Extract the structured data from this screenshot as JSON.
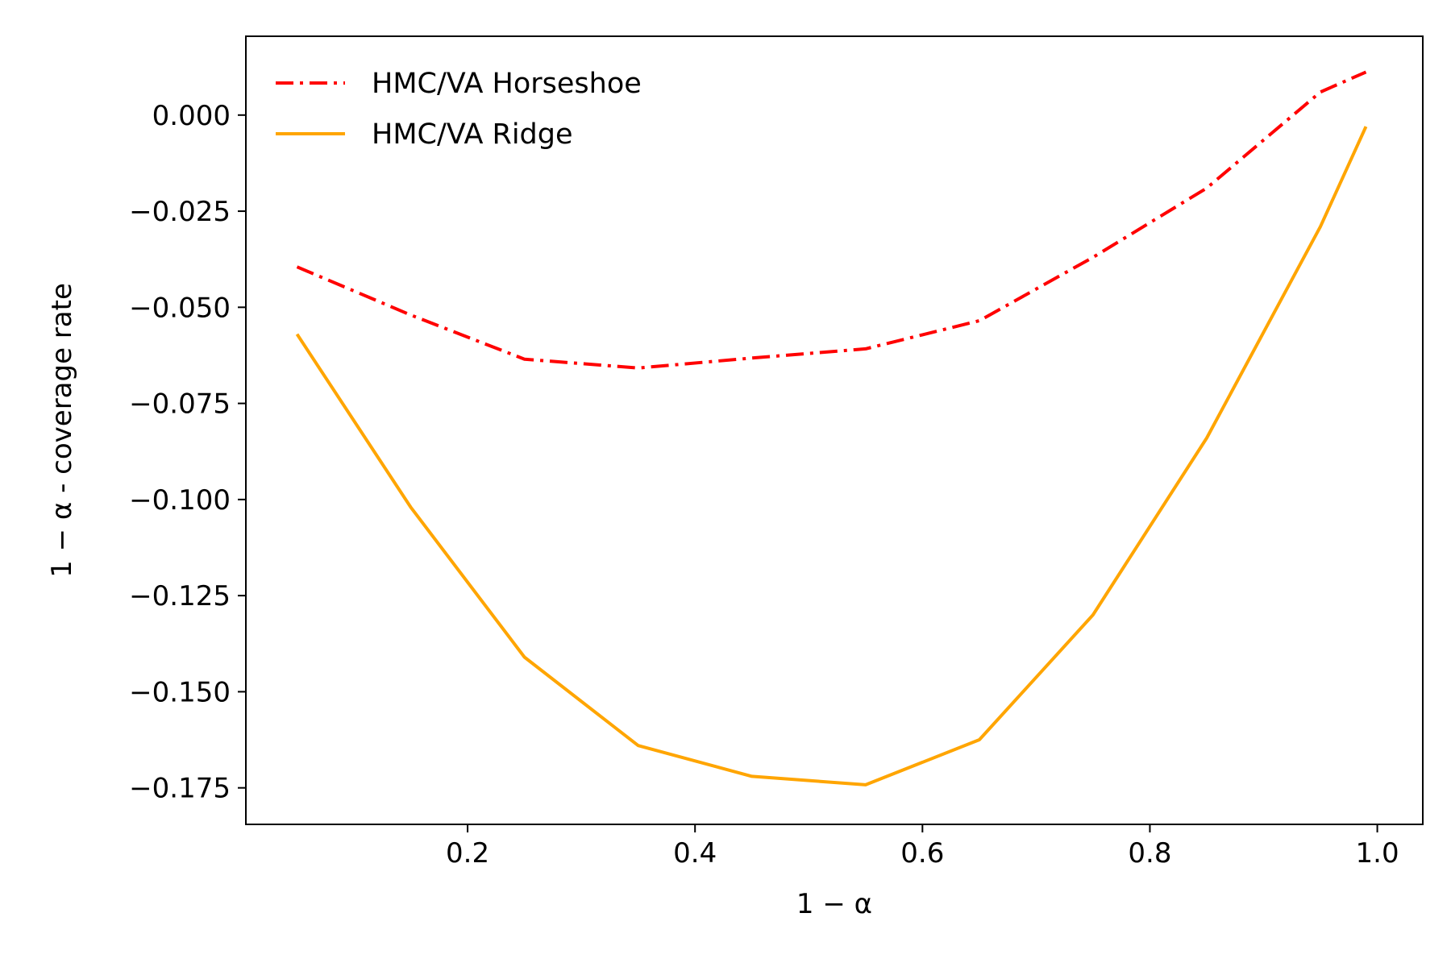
{
  "chart_data": {
    "type": "line",
    "title": "",
    "xlabel": "1 − α",
    "ylabel": "1 − α - coverage rate",
    "xlim": [
      0.005,
      1.04
    ],
    "ylim": [
      -0.1845,
      0.0205
    ],
    "xticks": [
      0.2,
      0.4,
      0.6,
      0.8,
      1.0
    ],
    "xtick_labels": [
      "0.2",
      "0.4",
      "0.6",
      "0.8",
      "1.0"
    ],
    "yticks": [
      0.0,
      -0.025,
      -0.05,
      -0.075,
      -0.1,
      -0.125,
      -0.15,
      -0.175
    ],
    "ytick_labels": [
      "0.000",
      "−0.025",
      "−0.050",
      "−0.075",
      "−0.100",
      "−0.125",
      "−0.150",
      "−0.175"
    ],
    "grid": false,
    "legend_position": "top-left",
    "series": [
      {
        "name": "HMC/VA Horseshoe",
        "color": "#ff0000",
        "line_style": "dash-dot",
        "x": [
          0.05,
          0.15,
          0.25,
          0.35,
          0.45,
          0.55,
          0.65,
          0.75,
          0.85,
          0.95,
          0.99
        ],
        "y": [
          -0.0395,
          -0.052,
          -0.0635,
          -0.0658,
          -0.0632,
          -0.0608,
          -0.0535,
          -0.037,
          -0.019,
          0.006,
          0.0112
        ]
      },
      {
        "name": "HMC/VA Ridge",
        "color": "#ffa500",
        "line_style": "solid",
        "x": [
          0.05,
          0.15,
          0.25,
          0.35,
          0.45,
          0.55,
          0.65,
          0.75,
          0.85,
          0.95,
          0.99
        ],
        "y": [
          -0.057,
          -0.102,
          -0.141,
          -0.164,
          -0.172,
          -0.1742,
          -0.1625,
          -0.13,
          -0.084,
          -0.029,
          -0.003
        ]
      }
    ]
  }
}
